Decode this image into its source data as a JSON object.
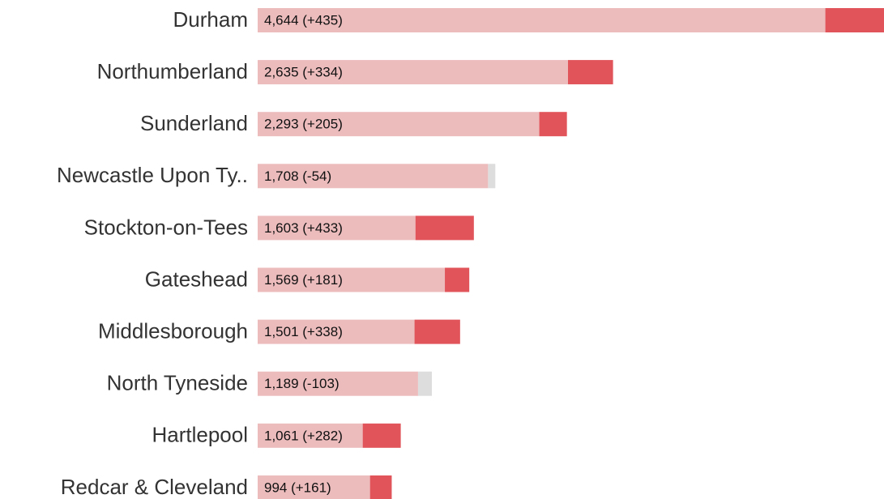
{
  "chart_data": {
    "type": "bar",
    "categories": [
      "Durham",
      "Northumberland",
      "Sunderland",
      "Newcastle Upon Ty..",
      "Stockton-on-Tees",
      "Gateshead",
      "Middlesborough",
      "North Tyneside",
      "Hartlepool",
      "Redcar & Cleveland"
    ],
    "values": [
      4644,
      2635,
      2293,
      1708,
      1603,
      1569,
      1501,
      1189,
      1061,
      994
    ],
    "changes": [
      435,
      334,
      205,
      -54,
      433,
      181,
      338,
      -103,
      282,
      161
    ],
    "value_labels": [
      "4,644 (+435)",
      "2,635 (+334)",
      "2,293 (+205)",
      "1,708 (-54)",
      "1,603 (+433)",
      "1,569 (+181)",
      "1,501 (+338)",
      "1,189 (-103)",
      "1,061 (+282)",
      "994 (+161)"
    ],
    "color": "#ecbcbd",
    "increase_color": "#e0545a",
    "decrease_color": "#dddddd"
  }
}
